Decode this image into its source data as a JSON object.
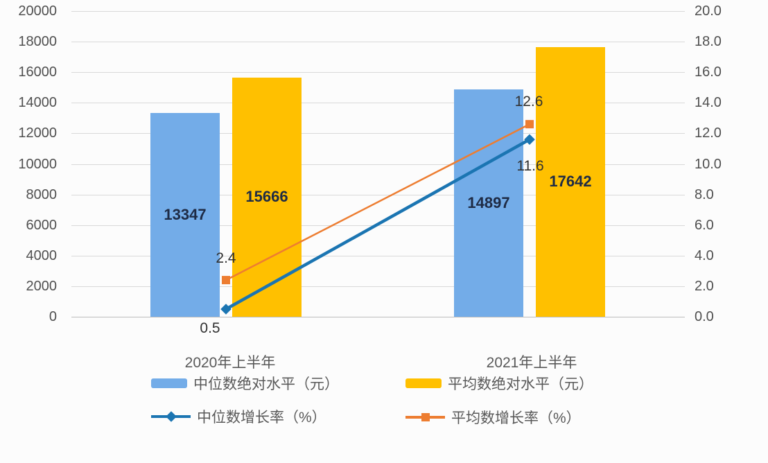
{
  "chart": {
    "background": "#FCFCFC",
    "grid_color": "#D9D9D9",
    "axis_line_color": "#BDBDBD",
    "tick_text_color": "#4F4F4F",
    "label_text_color": "#595959",
    "bar_value_color": "#1E2B45",
    "point_value_color": "#313131"
  },
  "chart_data": {
    "type": "bar",
    "subtype": "bar+line combo, dual axis",
    "title": "",
    "categories": [
      "2020年上半年",
      "2021年上半年"
    ],
    "series": [
      {
        "name": "中位数绝对水平（元）",
        "type": "bar",
        "axis": "left",
        "color": "#73ACE8",
        "values": [
          13347,
          14897
        ],
        "labels": [
          "13347",
          "14897"
        ]
      },
      {
        "name": "平均数绝对水平（元）",
        "type": "bar",
        "axis": "left",
        "color": "#FFC000",
        "values": [
          15666,
          17642
        ],
        "labels": [
          "15666",
          "17642"
        ]
      },
      {
        "name": "中位数增长率（%）",
        "type": "line",
        "axis": "right",
        "color": "#1B75B2",
        "marker": "diamond",
        "values": [
          0.5,
          11.6
        ],
        "labels": [
          "0.5",
          "11.6"
        ]
      },
      {
        "name": "平均数增长率（%）",
        "type": "line",
        "axis": "right",
        "color": "#ED7D31",
        "marker": "square",
        "values": [
          2.4,
          12.6
        ],
        "labels": [
          "2.4",
          "12.6"
        ]
      }
    ],
    "left_axis": {
      "min": 0,
      "max": 20000,
      "step": 2000,
      "tick_labels": [
        "20000",
        "18000",
        "16000",
        "14000",
        "12000",
        "10000",
        "8000",
        "6000",
        "4000",
        "2000",
        "0"
      ]
    },
    "right_axis": {
      "min": 0,
      "max": 20,
      "step": 2,
      "tick_labels": [
        "20.0",
        "18.0",
        "16.0",
        "14.0",
        "12.0",
        "10.0",
        "8.0",
        "6.0",
        "4.0",
        "2.0",
        "0.0"
      ]
    },
    "grid": "horizontal only",
    "legend_position": "bottom, two columns"
  }
}
